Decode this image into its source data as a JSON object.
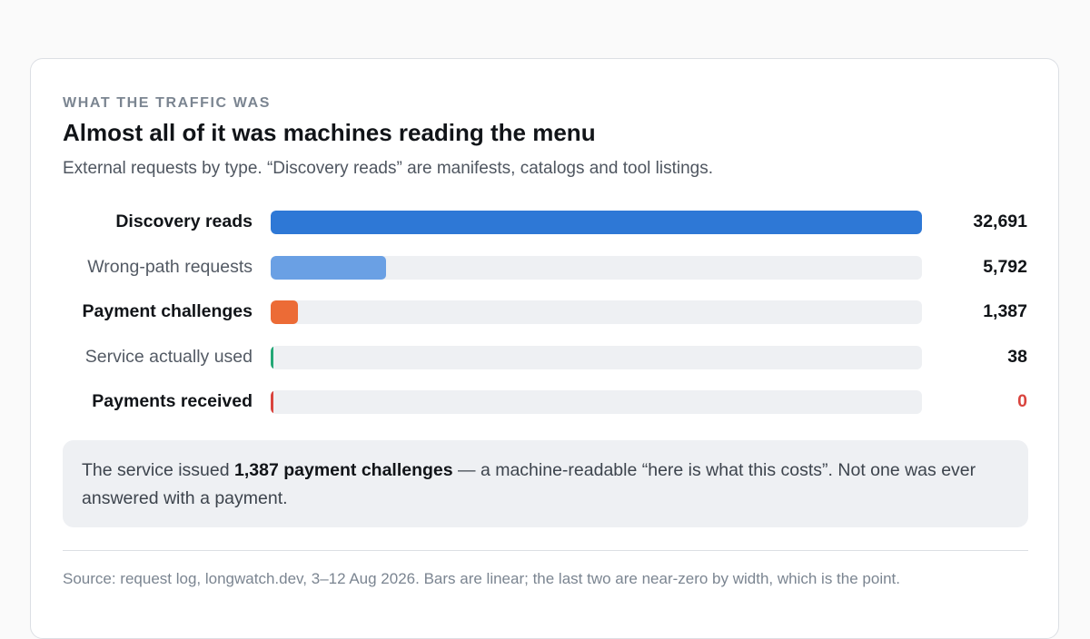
{
  "eyebrow": "WHAT THE TRAFFIC WAS",
  "title": "Almost all of it was machines reading the menu",
  "subtitle": "External requests by type. “Discovery reads” are manifests, catalogs and tool listings.",
  "chart_data": {
    "type": "bar",
    "orientation": "horizontal",
    "scale": "linear",
    "xlim": [
      0,
      32691
    ],
    "grid": false,
    "categories": [
      "Discovery reads",
      "Wrong-path requests",
      "Payment challenges",
      "Service actually used",
      "Payments received"
    ],
    "values": [
      32691,
      5792,
      1387,
      38,
      0
    ],
    "value_labels": [
      "32,691",
      "5,792",
      "1,387",
      "38",
      "0"
    ],
    "emphasized": [
      true,
      false,
      true,
      false,
      true
    ],
    "bar_colors": [
      "#2e78d6",
      "#6aa0e4",
      "#ec6b36",
      "#24a876",
      "#d9443e"
    ],
    "value_colors": [
      "#111418",
      "#111418",
      "#111418",
      "#111418",
      "#d9443e"
    ]
  },
  "callout": {
    "before": "The service issued ",
    "bold": "1,387 payment challenges",
    "after": " — a machine-readable “here is what this costs”. Not one was ever answered with a payment."
  },
  "source": "Source: request log, longwatch.dev, 3–12 Aug 2026. Bars are linear; the last two are near-zero by width, which is the point."
}
